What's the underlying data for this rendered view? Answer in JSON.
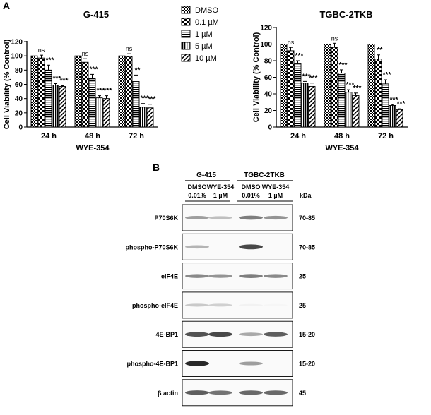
{
  "panel_a_label": "A",
  "panel_b_label": "B",
  "legend": [
    {
      "label": "DMSO",
      "pattern": "checker"
    },
    {
      "label": "0.1 µM",
      "pattern": "bigcheck"
    },
    {
      "label": "1  µM",
      "pattern": "hstripe"
    },
    {
      "label": "5  µM",
      "pattern": "vstripe"
    },
    {
      "label": "10 µM",
      "pattern": "diag"
    }
  ],
  "chart_data": [
    {
      "type": "bar",
      "title": "G-415",
      "xlabel": "WYE-354",
      "ylabel": "Cell Viability (% Control)",
      "ylim": [
        0,
        120
      ],
      "yticks": [
        0,
        20,
        40,
        60,
        80,
        100,
        120
      ],
      "categories": [
        "24 h",
        "48 h",
        "72 h"
      ],
      "series": [
        {
          "name": "DMSO",
          "values": [
            100,
            100,
            100
          ],
          "errors": [
            0,
            0,
            0
          ]
        },
        {
          "name": "0.1 µM",
          "values": [
            97,
            91,
            99
          ],
          "errors": [
            4,
            5,
            4
          ]
        },
        {
          "name": "1  µM",
          "values": [
            80,
            68,
            64
          ],
          "errors": [
            7,
            6,
            9
          ]
        },
        {
          "name": "5  µM",
          "values": [
            59,
            41,
            28
          ],
          "errors": [
            2,
            3,
            5
          ]
        },
        {
          "name": "10 µM",
          "values": [
            57,
            40,
            27
          ],
          "errors": [
            1,
            4,
            5
          ]
        }
      ],
      "significance": [
        [
          "",
          "",
          ""
        ],
        [
          "ns",
          "ns",
          "ns"
        ],
        [
          "***",
          "***",
          "**"
        ],
        [
          "***",
          "***",
          "***"
        ],
        [
          "***",
          "***",
          "***"
        ]
      ],
      "grid": false,
      "legend_position": "right"
    },
    {
      "type": "bar",
      "title": "TGBC-2TKB",
      "xlabel": "WYE-354",
      "ylabel": "Cell Viability (% Control)",
      "ylim": [
        0,
        120
      ],
      "yticks": [
        0,
        20,
        40,
        60,
        80,
        100,
        120
      ],
      "categories": [
        "24 h",
        "48 h",
        "72 h"
      ],
      "series": [
        {
          "name": "DMSO",
          "values": [
            100,
            100,
            100
          ],
          "errors": [
            0,
            0,
            0
          ]
        },
        {
          "name": "0.1 µM",
          "values": [
            92,
            96,
            82
          ],
          "errors": [
            4,
            5,
            5
          ]
        },
        {
          "name": "1  µM",
          "values": [
            77,
            65,
            52
          ],
          "errors": [
            3,
            4,
            5
          ]
        },
        {
          "name": "5  µM",
          "values": [
            53,
            42,
            26
          ],
          "errors": [
            2,
            3,
            1
          ]
        },
        {
          "name": "10 µM",
          "values": [
            49,
            38,
            21
          ],
          "errors": [
            4,
            3,
            1
          ]
        }
      ],
      "significance": [
        [
          "",
          "",
          ""
        ],
        [
          "ns",
          "ns",
          "**"
        ],
        [
          "***",
          "***",
          "***"
        ],
        [
          "***",
          "***",
          "***"
        ],
        [
          "***",
          "***",
          "***"
        ]
      ],
      "grid": false,
      "legend_position": "none"
    }
  ],
  "blot": {
    "cell_lines": [
      "G-415",
      "TGBC-2TKB"
    ],
    "lane_top": [
      "DMSO",
      "WYE-354",
      "DMSO",
      "WYE-354"
    ],
    "lane_bottom": [
      "0.01%",
      "1 µM",
      "0.01%",
      "1 µM"
    ],
    "kda_header": "kDa",
    "rows": [
      {
        "label": "P70S6K",
        "kda": "70-85",
        "intensity": [
          0.45,
          0.3,
          0.6,
          0.5
        ]
      },
      {
        "label": "phospho-P70S6K",
        "kda": "70-85",
        "intensity": [
          0.35,
          0.0,
          0.85,
          0.0
        ]
      },
      {
        "label": "eIF4E",
        "kda": "25",
        "intensity": [
          0.55,
          0.5,
          0.6,
          0.55
        ]
      },
      {
        "label": "phospho-eIF4E",
        "kda": "25",
        "intensity": [
          0.25,
          0.22,
          0.06,
          0.04
        ]
      },
      {
        "label": "4E-BP1",
        "kda": "15-20",
        "intensity": [
          0.8,
          0.85,
          0.4,
          0.75
        ]
      },
      {
        "label": "phospho-4E-BP1",
        "kda": "15-20",
        "intensity": [
          1.0,
          0.0,
          0.45,
          0.0
        ]
      },
      {
        "label": "β actin",
        "kda": "45",
        "intensity": [
          0.75,
          0.65,
          0.7,
          0.7
        ]
      }
    ]
  }
}
